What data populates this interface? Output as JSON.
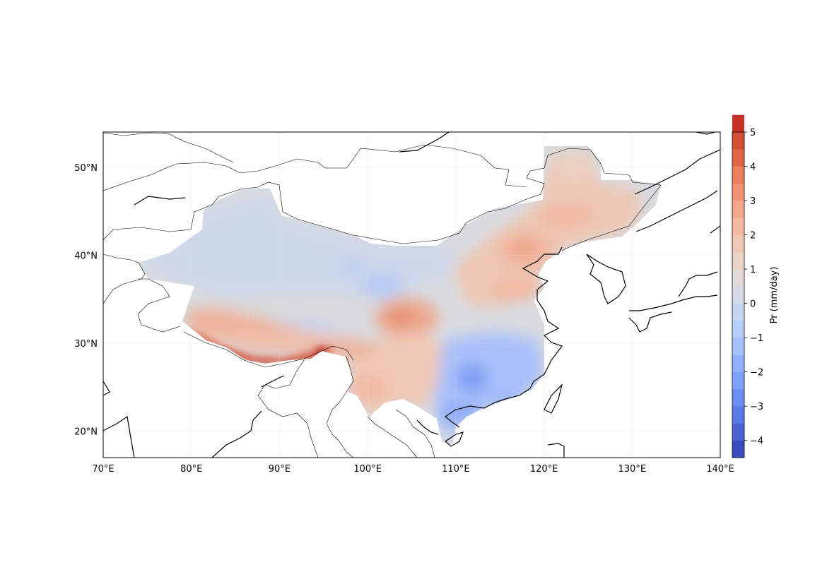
{
  "map": {
    "lon_range": [
      70,
      140
    ],
    "lat_range": [
      17,
      54
    ],
    "lon_ticks": [
      {
        "value": 70,
        "label": "70°E"
      },
      {
        "value": 80,
        "label": "80°E"
      },
      {
        "value": 90,
        "label": "90°E"
      },
      {
        "value": 100,
        "label": "100°E"
      },
      {
        "value": 110,
        "label": "110°E"
      },
      {
        "value": 120,
        "label": "120°E"
      },
      {
        "value": 130,
        "label": "130°E"
      },
      {
        "value": 140,
        "label": "140°E"
      }
    ],
    "lat_ticks": [
      {
        "value": 20,
        "label": "20°N"
      },
      {
        "value": 30,
        "label": "30°N"
      },
      {
        "value": 40,
        "label": "40°N"
      },
      {
        "value": 50,
        "label": "50°N"
      }
    ],
    "gridlines": true,
    "region": "China",
    "variable": "precipitation anomaly"
  },
  "colorbar": {
    "label": "Pr (mm/day)",
    "min": -4.5,
    "max": 5,
    "step": 0.5,
    "ticks": [
      {
        "value": -4,
        "label": "−4"
      },
      {
        "value": -3,
        "label": "−3"
      },
      {
        "value": -2,
        "label": "−2"
      },
      {
        "value": -1,
        "label": "−1"
      },
      {
        "value": 0,
        "label": "0"
      },
      {
        "value": 1,
        "label": "1"
      },
      {
        "value": 2,
        "label": "2"
      },
      {
        "value": 3,
        "label": "3"
      },
      {
        "value": 4,
        "label": "4"
      },
      {
        "value": 5,
        "label": "5"
      }
    ],
    "colors": [
      "#3b4cc0",
      "#4a63d3",
      "#5b7ae5",
      "#6c8ff1",
      "#7ea1fa",
      "#90b2fe",
      "#a3c2fe",
      "#b5cef9",
      "#c5d6f2",
      "#d5dbe5",
      "#e2dad5",
      "#ecd3c5",
      "#f2c7b3",
      "#f5b9a0",
      "#f5a68b",
      "#f29274",
      "#ec7d5e",
      "#e26749",
      "#d44e37",
      "#c43127"
    ]
  },
  "chart_data": {
    "type": "heatmap",
    "title": "",
    "xlabel": "",
    "ylabel": "",
    "xlim": [
      70,
      140
    ],
    "ylim": [
      17,
      54
    ],
    "zlabel": "Pr (mm/day)",
    "zlim": [
      -4.5,
      5
    ],
    "description_points": [
      {
        "lon": 78,
        "lat": 42,
        "value": -0.8
      },
      {
        "lon": 90,
        "lat": 40,
        "value": -0.7
      },
      {
        "lon": 100,
        "lat": 38,
        "value": -0.8
      },
      {
        "lon": 102,
        "lat": 37,
        "value": -1.3
      },
      {
        "lon": 95,
        "lat": 33,
        "value": -0.2
      },
      {
        "lon": 90,
        "lat": 31,
        "value": -0.8
      },
      {
        "lon": 88,
        "lat": 28.5,
        "value": 3.5
      },
      {
        "lon": 94,
        "lat": 28.8,
        "value": 4.5
      },
      {
        "lon": 80,
        "lat": 30.5,
        "value": 4.0
      },
      {
        "lon": 105,
        "lat": 32.5,
        "value": 3.0
      },
      {
        "lon": 100,
        "lat": 24,
        "value": 1.8
      },
      {
        "lon": 112,
        "lat": 27,
        "value": -2.5
      },
      {
        "lon": 113,
        "lat": 23,
        "value": -3.0
      },
      {
        "lon": 117,
        "lat": 26,
        "value": -1.5
      },
      {
        "lon": 115,
        "lat": 38,
        "value": 2.2
      },
      {
        "lon": 120,
        "lat": 45,
        "value": 1.8
      },
      {
        "lon": 125,
        "lat": 48,
        "value": 1.2
      },
      {
        "lon": 110,
        "lat": 42,
        "value": 0.3
      }
    ]
  }
}
